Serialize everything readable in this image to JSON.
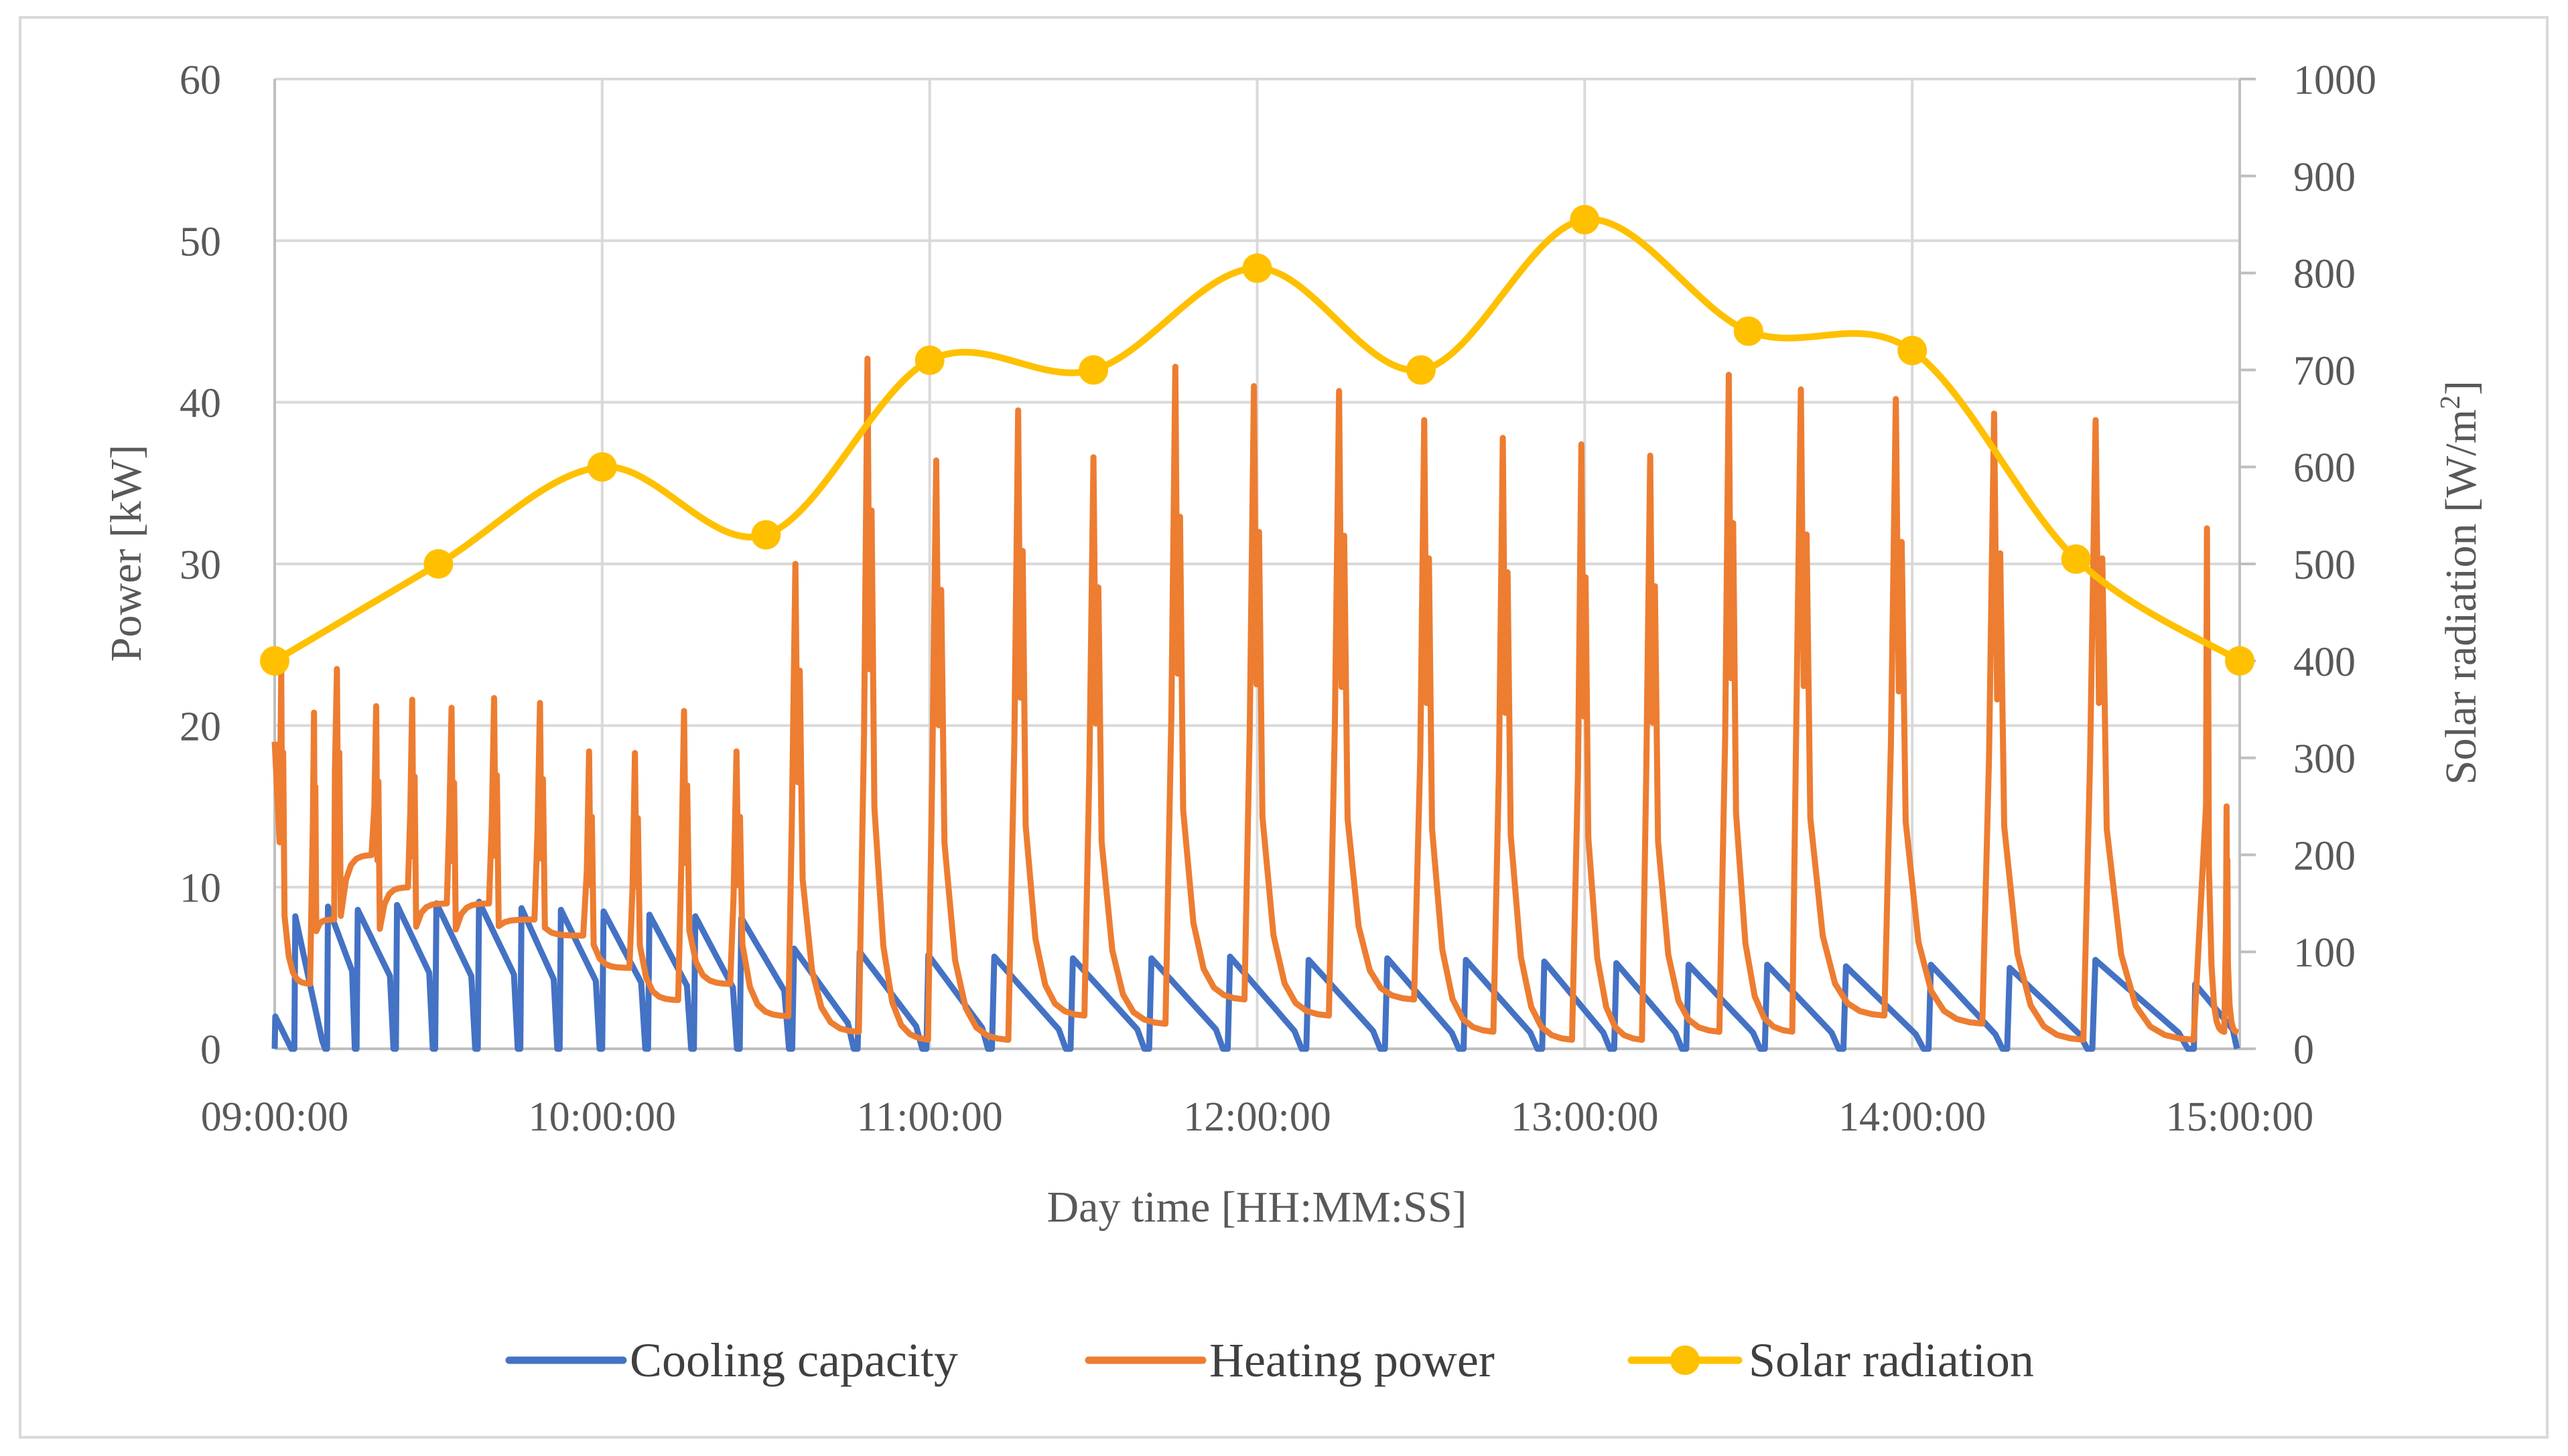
{
  "chart_data": {
    "type": "line",
    "title": "",
    "xlabel": "Day time [HH:MM:SS]",
    "ylabel": "Power [kW]",
    "y2label_main": "Solar radiation [W/m",
    "y2label_sup": "2",
    "y2label_end": "]",
    "ylim": [
      0,
      60
    ],
    "y2lim": [
      0,
      1000
    ],
    "xlim_hours": [
      9,
      15
    ],
    "x_tick_labels": [
      "09:00:00",
      "10:00:00",
      "11:00:00",
      "12:00:00",
      "13:00:00",
      "14:00:00",
      "15:00:00"
    ],
    "x_tick_values": [
      9,
      10,
      11,
      12,
      13,
      14,
      15
    ],
    "y_tick_labels": [
      "0",
      "10",
      "20",
      "30",
      "40",
      "50",
      "60"
    ],
    "y_tick_values": [
      0,
      10,
      20,
      30,
      40,
      50,
      60
    ],
    "y2_tick_labels": [
      "0",
      "100",
      "200",
      "300",
      "400",
      "500",
      "600",
      "700",
      "800",
      "900",
      "1000"
    ],
    "y2_tick_values": [
      0,
      100,
      200,
      300,
      400,
      500,
      600,
      700,
      800,
      900,
      1000
    ],
    "grid": true,
    "legend_position": "bottom",
    "series": [
      {
        "name": "Cooling capacity",
        "color": "#4472c4",
        "axis": "left",
        "cycle_peaks_hours": [
          9.0,
          9.06,
          9.16,
          9.25,
          9.37,
          9.49,
          9.62,
          9.75,
          9.87,
          10.0,
          10.14,
          10.28,
          10.42,
          10.58,
          10.78,
          10.99,
          11.19,
          11.43,
          11.67,
          11.91,
          12.15,
          12.39,
          12.63,
          12.87,
          13.09,
          13.31,
          13.55,
          13.79,
          14.05,
          14.29,
          14.55,
          14.86
        ],
        "cycle_peak_values": [
          2,
          8.2,
          8.8,
          8.6,
          8.9,
          9.0,
          9.1,
          8.7,
          8.6,
          8.5,
          8.3,
          8.2,
          8.1,
          6.2,
          6.0,
          5.8,
          5.7,
          5.6,
          5.6,
          5.7,
          5.5,
          5.6,
          5.5,
          5.4,
          5.3,
          5.2,
          5.2,
          5.1,
          5.2,
          5.0,
          5.5,
          4.0
        ],
        "cycle_min_values": [
          0,
          0.5,
          4.8,
          4.5,
          4.7,
          4.5,
          4.6,
          4.3,
          4.2,
          4.1,
          3.9,
          3.8,
          3.6,
          1.6,
          1.4,
          1.3,
          1.2,
          1.2,
          1.2,
          1.1,
          1.1,
          1.0,
          1.0,
          1.0,
          1.0,
          1.0,
          1.0,
          0.9,
          0.9,
          0.9,
          1.0,
          1.2
        ]
      },
      {
        "name": "Heating power",
        "color": "#ed7d31",
        "axis": "left",
        "spike_hours": [
          9.02,
          9.12,
          9.19,
          9.31,
          9.42,
          9.54,
          9.67,
          9.81,
          9.96,
          10.1,
          10.25,
          10.41,
          10.59,
          10.81,
          11.02,
          11.27,
          11.5,
          11.75,
          11.99,
          12.25,
          12.51,
          12.75,
          12.99,
          13.2,
          13.44,
          13.66,
          13.95,
          14.25,
          14.56,
          14.9,
          14.96
        ],
        "spike_values": [
          23.5,
          20.8,
          23.5,
          21.2,
          21.6,
          21.1,
          21.7,
          21.4,
          18.4,
          18.3,
          20.9,
          18.4,
          30.0,
          42.7,
          36.4,
          39.5,
          36.6,
          42.2,
          41.0,
          40.7,
          38.9,
          37.8,
          37.4,
          36.7,
          41.7,
          40.8,
          40.2,
          39.3,
          38.9,
          32.2,
          15.0
        ],
        "trough_values": [
          4,
          8,
          12,
          10,
          9,
          9,
          8,
          7,
          5,
          3,
          4,
          2,
          1,
          0.5,
          0.5,
          2,
          1.5,
          3,
          2,
          3,
          1,
          0.5,
          0.5,
          1,
          1,
          2,
          1.5,
          0.5,
          0.5,
          1,
          1
        ]
      },
      {
        "name": "Solar radiation",
        "color": "#ffc000",
        "axis": "right",
        "x_hours": [
          9.0,
          9.5,
          10.0,
          10.5,
          11.0,
          11.5,
          12.0,
          12.5,
          13.0,
          13.5,
          14.0,
          14.5,
          15.0
        ],
        "values": [
          400,
          500,
          600,
          530,
          710,
          700,
          805,
          700,
          855,
          740,
          720,
          505,
          400
        ]
      }
    ]
  }
}
